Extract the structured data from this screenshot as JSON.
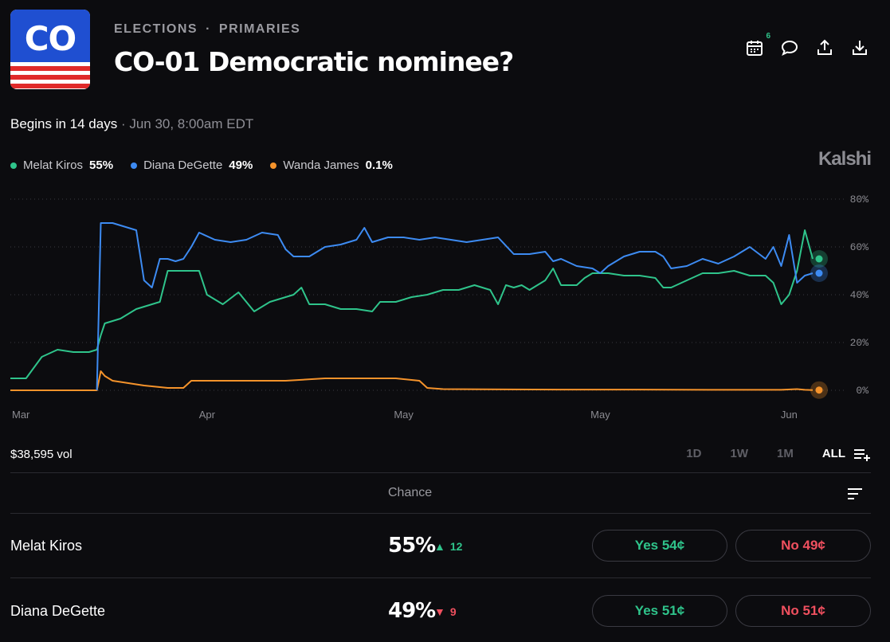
{
  "logo": {
    "text": "CO"
  },
  "header": {
    "breadcrumb": [
      "ELECTIONS",
      "·",
      "PRIMARIES"
    ],
    "title": "CO-01 Democratic nominee?",
    "calendar_badge": "6",
    "icons": [
      "calendar-icon",
      "comment-icon",
      "share-icon",
      "download-icon"
    ]
  },
  "status": {
    "begins": "Begins in 14 days",
    "date": "· Jun 30, 8:00am EDT"
  },
  "legend": [
    {
      "name": "Melat Kiros",
      "value": "55%",
      "color": "#2fc48b"
    },
    {
      "name": "Diana DeGette",
      "value": "49%",
      "color": "#3d8bf2"
    },
    {
      "name": "Wanda James",
      "value": "0.1%",
      "color": "#f5932b"
    }
  ],
  "brand": "Kalshi",
  "chart_data": {
    "type": "line",
    "x_ticks": [
      "Mar",
      "Apr",
      "May",
      "May",
      "Jun"
    ],
    "y_ticks": [
      "80%",
      "60%",
      "40%",
      "20%",
      "0%"
    ],
    "ylim": [
      0,
      80
    ],
    "grid": true,
    "series": [
      {
        "name": "Melat Kiros",
        "color": "#2fc48b",
        "points": [
          [
            0,
            5
          ],
          [
            2,
            5
          ],
          [
            4,
            14
          ],
          [
            6,
            17
          ],
          [
            8,
            16
          ],
          [
            10,
            16
          ],
          [
            11,
            17
          ],
          [
            11.5,
            23
          ],
          [
            12,
            28
          ],
          [
            14,
            30
          ],
          [
            16,
            34
          ],
          [
            18,
            36
          ],
          [
            19,
            37
          ],
          [
            20,
            50
          ],
          [
            22,
            50
          ],
          [
            24,
            50
          ],
          [
            25,
            40
          ],
          [
            27,
            36
          ],
          [
            29,
            41
          ],
          [
            31,
            33
          ],
          [
            33,
            37
          ],
          [
            35,
            39
          ],
          [
            36,
            40
          ],
          [
            37,
            43
          ],
          [
            38,
            36
          ],
          [
            40,
            36
          ],
          [
            42,
            34
          ],
          [
            44,
            34
          ],
          [
            46,
            33
          ],
          [
            47,
            37
          ],
          [
            49,
            37
          ],
          [
            51,
            39
          ],
          [
            53,
            40
          ],
          [
            55,
            42
          ],
          [
            57,
            42
          ],
          [
            59,
            44
          ],
          [
            61,
            42
          ],
          [
            62,
            36
          ],
          [
            63,
            44
          ],
          [
            64,
            43
          ],
          [
            65,
            44
          ],
          [
            66,
            42
          ],
          [
            68,
            46
          ],
          [
            69,
            51
          ],
          [
            70,
            44
          ],
          [
            71,
            44
          ],
          [
            72,
            44
          ],
          [
            73,
            47
          ],
          [
            74,
            49
          ],
          [
            76,
            49
          ],
          [
            78,
            48
          ],
          [
            80,
            48
          ],
          [
            82,
            47
          ],
          [
            83,
            43
          ],
          [
            84,
            43
          ],
          [
            86,
            46
          ],
          [
            88,
            49
          ],
          [
            90,
            49
          ],
          [
            92,
            50
          ],
          [
            94,
            48
          ],
          [
            96,
            48
          ],
          [
            97,
            45
          ],
          [
            98,
            36
          ],
          [
            99,
            40
          ],
          [
            100,
            50
          ],
          [
            101,
            67
          ],
          [
            102,
            55
          ]
        ]
      },
      {
        "name": "Diana DeGette",
        "color": "#3d8bf2",
        "points": [
          [
            11,
            0
          ],
          [
            11.5,
            70
          ],
          [
            13,
            70
          ],
          [
            15,
            68
          ],
          [
            16,
            67
          ],
          [
            17,
            46
          ],
          [
            18,
            43
          ],
          [
            19,
            55
          ],
          [
            20,
            55
          ],
          [
            21,
            54
          ],
          [
            22,
            55
          ],
          [
            23,
            60
          ],
          [
            24,
            66
          ],
          [
            26,
            63
          ],
          [
            28,
            62
          ],
          [
            30,
            63
          ],
          [
            32,
            66
          ],
          [
            34,
            65
          ],
          [
            35,
            59
          ],
          [
            36,
            56
          ],
          [
            38,
            56
          ],
          [
            40,
            60
          ],
          [
            42,
            61
          ],
          [
            44,
            63
          ],
          [
            45,
            68
          ],
          [
            46,
            62
          ],
          [
            48,
            64
          ],
          [
            50,
            64
          ],
          [
            52,
            63
          ],
          [
            54,
            64
          ],
          [
            56,
            63
          ],
          [
            58,
            62
          ],
          [
            60,
            63
          ],
          [
            62,
            64
          ],
          [
            64,
            57
          ],
          [
            66,
            57
          ],
          [
            68,
            58
          ],
          [
            69,
            54
          ],
          [
            70,
            55
          ],
          [
            72,
            52
          ],
          [
            74,
            51
          ],
          [
            75,
            49
          ],
          [
            76,
            52
          ],
          [
            78,
            56
          ],
          [
            80,
            58
          ],
          [
            82,
            58
          ],
          [
            83,
            56
          ],
          [
            84,
            51
          ],
          [
            86,
            52
          ],
          [
            88,
            55
          ],
          [
            90,
            53
          ],
          [
            92,
            56
          ],
          [
            94,
            60
          ],
          [
            96,
            55
          ],
          [
            97,
            60
          ],
          [
            98,
            52
          ],
          [
            99,
            65
          ],
          [
            100,
            45
          ],
          [
            101,
            48
          ],
          [
            102,
            49
          ]
        ]
      },
      {
        "name": "Wanda James",
        "color": "#f5932b",
        "points": [
          [
            0,
            0
          ],
          [
            11,
            0
          ],
          [
            11.5,
            8
          ],
          [
            12,
            6
          ],
          [
            13,
            4
          ],
          [
            15,
            3
          ],
          [
            17,
            2
          ],
          [
            20,
            1
          ],
          [
            22,
            1
          ],
          [
            23,
            4
          ],
          [
            25,
            4
          ],
          [
            28,
            4
          ],
          [
            31,
            4
          ],
          [
            35,
            4
          ],
          [
            40,
            5
          ],
          [
            44,
            5
          ],
          [
            49,
            5
          ],
          [
            52,
            4
          ],
          [
            53,
            1
          ],
          [
            55,
            0.5
          ],
          [
            60,
            0.4
          ],
          [
            70,
            0.3
          ],
          [
            80,
            0.3
          ],
          [
            90,
            0.2
          ],
          [
            98,
            0.2
          ],
          [
            100,
            0.5
          ],
          [
            101,
            0.2
          ],
          [
            102,
            0.1
          ]
        ]
      }
    ]
  },
  "volume": "$38,595 vol",
  "ranges": [
    {
      "label": "1D",
      "active": false
    },
    {
      "label": "1W",
      "active": false
    },
    {
      "label": "1M",
      "active": false
    },
    {
      "label": "ALL",
      "active": true
    }
  ],
  "table": {
    "header": "Chance",
    "rows": [
      {
        "name": "Melat Kiros",
        "chance": "55%",
        "change": "12",
        "direction": "up",
        "yes": "Yes 54¢",
        "no": "No 49¢"
      },
      {
        "name": "Diana DeGette",
        "chance": "49%",
        "change": "9",
        "direction": "down",
        "yes": "Yes 51¢",
        "no": "No 51¢"
      }
    ]
  }
}
